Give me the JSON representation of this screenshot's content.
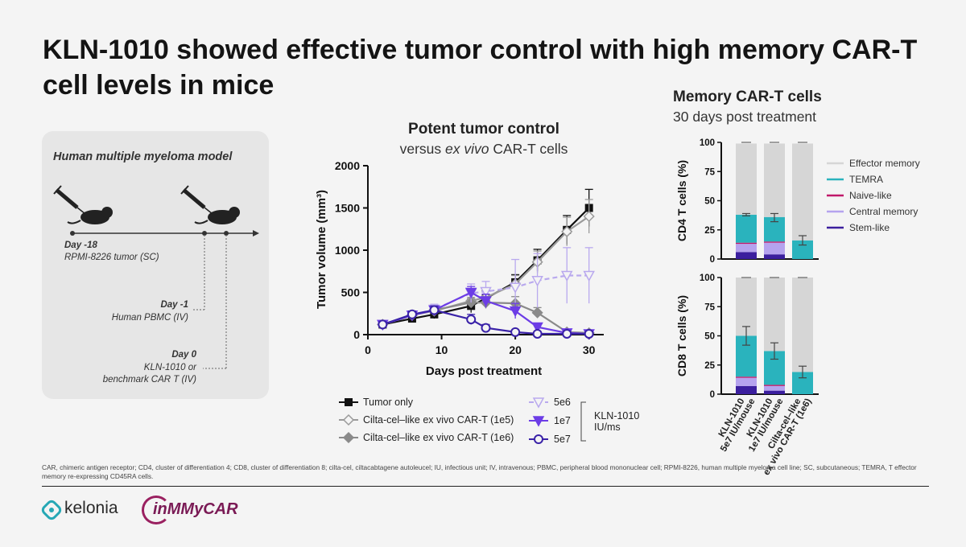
{
  "slide": {
    "title": "KLN-1010 showed effective tumor control with high memory CAR-T cell levels in mice",
    "footnote": "CAR, chimeric antigen receptor; CD4, cluster of differentiation 4; CD8, cluster of differentiation 8; cilta-cel, ciltacabtagene autoleucel; IU, infectious unit; IV, intravenous; PBMC, peripheral blood mononuclear cell; RPMI-8226, human multiple myeloma cell line; SC, subcutaneous; TEMRA, T effector memory re-expressing CD45RA cells.",
    "logos": {
      "kelonia": "kelonia",
      "inmmycar": "inMMyCAR"
    }
  },
  "model": {
    "title": "Human multiple myeloma model",
    "events": [
      {
        "day": "Day -18",
        "desc": "RPMI-8226 tumor (SC)"
      },
      {
        "day": "Day -1",
        "desc": "Human PBMC (IV)"
      },
      {
        "day": "Day 0",
        "desc_line1": "KLN-1010 or",
        "desc_line2": "benchmark CAR T (IV)"
      }
    ]
  },
  "chart_data": [
    {
      "type": "line",
      "title": "Potent tumor control",
      "subtitle_pre": "versus ",
      "subtitle_italic": "ex vivo",
      "subtitle_post": " CAR-T cells",
      "xlabel": "Days post treatment",
      "ylabel": "Tumor volume (mm³)",
      "xlim": [
        0,
        32
      ],
      "ylim": [
        0,
        2000
      ],
      "xticks": [
        0,
        10,
        20,
        30
      ],
      "yticks": [
        0,
        500,
        1000,
        1500,
        2000
      ],
      "group_label_line1": "KLN-1010",
      "group_label_line2": "IU/ms",
      "series": [
        {
          "name": "Tumor only",
          "marker": "square",
          "color": "#111111",
          "dash": "",
          "x": [
            2,
            6,
            9,
            14,
            16,
            20,
            23,
            27,
            30
          ],
          "y": [
            120,
            190,
            240,
            340,
            430,
            620,
            880,
            1240,
            1500
          ],
          "err": [
            30,
            40,
            50,
            80,
            90,
            90,
            130,
            170,
            220
          ]
        },
        {
          "name": "Cilta-cel–like ex vivo CAR-T (1e5)",
          "marker": "diamond-open",
          "color": "#9a9a9a",
          "dash": "",
          "x": [
            2,
            6,
            9,
            14,
            16,
            20,
            23,
            27,
            30
          ],
          "y": [
            120,
            230,
            280,
            400,
            440,
            600,
            860,
            1220,
            1400
          ],
          "err": [
            30,
            40,
            50,
            80,
            90,
            100,
            130,
            170,
            200
          ]
        },
        {
          "name": "Cilta-cel–like ex vivo CAR-T (1e6)",
          "marker": "diamond",
          "color": "#8a8a8a",
          "dash": "",
          "x": [
            2,
            6,
            9,
            14,
            16,
            20,
            23,
            27,
            30
          ],
          "y": [
            120,
            230,
            290,
            380,
            380,
            370,
            260,
            30,
            20
          ],
          "err": [
            30,
            40,
            50,
            60,
            70,
            80,
            60,
            20,
            15
          ]
        },
        {
          "name": "5e6",
          "marker": "triangle-down-open",
          "color": "#b9a9ee",
          "dash": "6,4",
          "x": [
            2,
            6,
            9,
            14,
            16,
            20,
            23,
            27,
            30
          ],
          "y": [
            120,
            230,
            300,
            490,
            510,
            560,
            640,
            700,
            700
          ],
          "err": [
            30,
            40,
            60,
            110,
            120,
            330,
            320,
            330,
            330
          ]
        },
        {
          "name": "1e7",
          "marker": "triangle-down",
          "color": "#6c3de6",
          "dash": "",
          "x": [
            2,
            6,
            9,
            14,
            16,
            20,
            23,
            27,
            30
          ],
          "y": [
            120,
            230,
            290,
            500,
            400,
            280,
            90,
            20,
            10
          ],
          "err": [
            30,
            40,
            50,
            70,
            80,
            90,
            40,
            15,
            10
          ]
        },
        {
          "name": "5e7",
          "marker": "circle-open",
          "color": "#3a22a8",
          "dash": "",
          "x": [
            2,
            6,
            9,
            14,
            16,
            20,
            23,
            27,
            30
          ],
          "y": [
            120,
            240,
            290,
            180,
            80,
            30,
            10,
            10,
            10
          ],
          "err": [
            30,
            40,
            50,
            60,
            40,
            20,
            10,
            8,
            8
          ]
        }
      ]
    },
    {
      "type": "bar",
      "stacked": true,
      "title": "Memory CAR-T cells",
      "subtitle": "30 days post treatment",
      "categories": [
        "KLN-1010 5e7 IU/mouse",
        "KLN-1010 1e7 IU/mouse",
        "Cilta-cel–like ex vivo CAR-T (1e6)"
      ],
      "category_lines": [
        [
          "KLN-1010",
          "5e7 IU/mouse"
        ],
        [
          "KLN-1010",
          "1e7 IU/mouse"
        ],
        [
          "Cilta-cel–like",
          "ex vivo CAR-T (1e6)"
        ]
      ],
      "legend": [
        {
          "name": "Effector memory",
          "color": "#d6d6d6"
        },
        {
          "name": "TEMRA",
          "color": "#2ab3bd"
        },
        {
          "name": "Naive-like",
          "color": "#c0186a"
        },
        {
          "name": "Central memory",
          "color": "#b5a3ee"
        },
        {
          "name": "Stem-like",
          "color": "#3b1f9e"
        }
      ],
      "panels": [
        {
          "ylabel": "CD4 T cells (%)",
          "ylim": [
            0,
            100
          ],
          "yticks": [
            0,
            25,
            50,
            75,
            100
          ],
          "series": [
            {
              "name": "Stem-like",
              "values": [
                6,
                4,
                0
              ]
            },
            {
              "name": "Central memory",
              "values": [
                7,
                10,
                0
              ]
            },
            {
              "name": "Naive-like",
              "values": [
                1,
                1,
                0
              ]
            },
            {
              "name": "TEMRA",
              "values": [
                24,
                21,
                16
              ]
            },
            {
              "name": "Effector memory",
              "values": [
                61,
                63,
                83
              ]
            }
          ],
          "err_top": [
            [
              37,
              39
            ],
            [
              32,
              39
            ],
            [
              12,
              20
            ]
          ]
        },
        {
          "ylabel": "CD8 T cells (%)",
          "ylim": [
            0,
            100
          ],
          "yticks": [
            0,
            25,
            50,
            75,
            100
          ],
          "series": [
            {
              "name": "Stem-like",
              "values": [
                7,
                3,
                0
              ]
            },
            {
              "name": "Central memory",
              "values": [
                7,
                4,
                0
              ]
            },
            {
              "name": "Naive-like",
              "values": [
                1,
                1,
                0
              ]
            },
            {
              "name": "TEMRA",
              "values": [
                35,
                29,
                19
              ]
            },
            {
              "name": "Effector memory",
              "values": [
                50,
                63,
                81
              ]
            }
          ],
          "err_top": [
            [
              42,
              58
            ],
            [
              30,
              44
            ],
            [
              14,
              24
            ]
          ]
        }
      ]
    }
  ]
}
